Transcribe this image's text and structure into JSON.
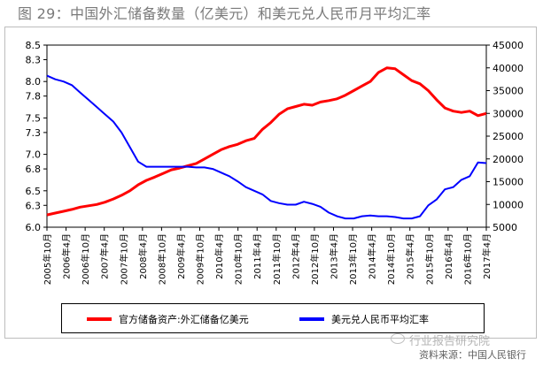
{
  "figure": {
    "title": "图 29：中国外汇储备数量（亿美元）和美元兑人民币月平均汇率",
    "source": "资料来源：中国人民银行",
    "watermark": "行业报告研究院"
  },
  "legend": {
    "series1_label": "官方储备资产:外汇储备亿美元",
    "series2_label": "美元兑人民币平均汇率"
  },
  "colors": {
    "reserves": "#ff0000",
    "rate": "#0000ff"
  },
  "chart_data": {
    "type": "line",
    "x_tick_labels": [
      "2005年10月",
      "2006年4月",
      "2006年10月",
      "2007年4月",
      "2007年10月",
      "2008年4月",
      "2008年10月",
      "2009年4月",
      "2009年10月",
      "2010年4月",
      "2010年10月",
      "2011年4月",
      "2011年10月",
      "2012年4月",
      "2012年10月",
      "2013年4月",
      "2013年10月",
      "2014年4月",
      "2014年10月",
      "2015年4月",
      "2015年10月",
      "2016年4月",
      "2016年10月",
      "2017年4月"
    ],
    "y_left": {
      "ticks": [
        "6.0",
        "6.3",
        "6.5",
        "6.8",
        "7.0",
        "7.3",
        "7.5",
        "7.8",
        "8.0",
        "8.3",
        "8.5"
      ],
      "range": [
        6.0,
        8.5
      ]
    },
    "y_right": {
      "ticks": [
        "5000",
        "10000",
        "15000",
        "20000",
        "25000",
        "30000",
        "35000",
        "40000",
        "45000"
      ],
      "range": [
        5000,
        45000
      ]
    },
    "grid": false,
    "legend_position": "bottom",
    "series": [
      {
        "name": "官方储备资产:外汇储备亿美元",
        "axis": "right",
        "values": [
          7700,
          8100,
          8500,
          8900,
          9400,
          9700,
          10000,
          10500,
          11200,
          12000,
          13000,
          14300,
          15300,
          16000,
          16800,
          17600,
          18000,
          18500,
          19000,
          20000,
          21000,
          22000,
          22700,
          23200,
          24000,
          24500,
          26500,
          28000,
          29800,
          31000,
          31500,
          32000,
          31800,
          32500,
          32800,
          33200,
          34000,
          35000,
          36000,
          37000,
          39000,
          40000,
          39800,
          38500,
          37200,
          36500,
          35000,
          33000,
          31200,
          30500,
          30200,
          30500,
          29500,
          30000
        ]
      },
      {
        "name": "美元兑人民币平均汇率",
        "axis": "left",
        "values": [
          8.08,
          8.03,
          8.0,
          7.95,
          7.85,
          7.75,
          7.65,
          7.55,
          7.45,
          7.3,
          7.1,
          6.9,
          6.83,
          6.83,
          6.83,
          6.83,
          6.83,
          6.83,
          6.82,
          6.82,
          6.8,
          6.75,
          6.7,
          6.63,
          6.55,
          6.5,
          6.45,
          6.36,
          6.33,
          6.31,
          6.31,
          6.35,
          6.32,
          6.28,
          6.2,
          6.15,
          6.12,
          6.12,
          6.15,
          6.16,
          6.15,
          6.15,
          6.14,
          6.12,
          6.12,
          6.15,
          6.3,
          6.38,
          6.52,
          6.55,
          6.65,
          6.7,
          6.89,
          6.88
        ]
      }
    ]
  }
}
